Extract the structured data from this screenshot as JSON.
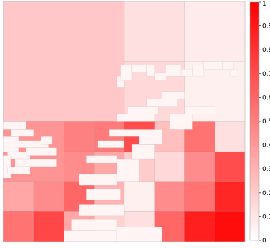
{
  "chart_data": {
    "type": "heatmap",
    "title": "",
    "xlabel": "",
    "ylabel": "",
    "description_note": "",
    "colormap": {
      "low": "#ffffff",
      "high": "#ff0000"
    },
    "colorbar": {
      "min": 0,
      "max": 1,
      "ticks": [
        0,
        0.1,
        0.2,
        0.3,
        0.4,
        0.5,
        0.6,
        0.7,
        0.8,
        0.9,
        1
      ],
      "tick_labels": [
        "0",
        "0.1",
        "0.2",
        "0.3",
        "0.4",
        "0.5",
        "0.6",
        "0.7",
        "0.8",
        "0.9",
        "1"
      ]
    },
    "grid_size": 64,
    "cells": [
      [
        0,
        0,
        32,
        32,
        0.22
      ],
      [
        32,
        0,
        16,
        16,
        0.12
      ],
      [
        48,
        0,
        16,
        16,
        0.08
      ],
      [
        32,
        16,
        16,
        16,
        0.15
      ],
      [
        48,
        16,
        16,
        16,
        0.06
      ],
      [
        0,
        32,
        16,
        16,
        0.42
      ],
      [
        16,
        32,
        8,
        8,
        0.5
      ],
      [
        24,
        32,
        8,
        8,
        0.52
      ],
      [
        0,
        48,
        8,
        8,
        0.35
      ],
      [
        8,
        48,
        8,
        8,
        0.45
      ],
      [
        0,
        56,
        8,
        8,
        0.55
      ],
      [
        8,
        56,
        8,
        8,
        0.72
      ],
      [
        16,
        40,
        8,
        8,
        0.45
      ],
      [
        24,
        40,
        8,
        8,
        0.35
      ],
      [
        16,
        48,
        8,
        8,
        0.6
      ],
      [
        24,
        48,
        8,
        8,
        0.3
      ],
      [
        16,
        56,
        8,
        8,
        0.35
      ],
      [
        24,
        56,
        8,
        8,
        0.18
      ],
      [
        32,
        32,
        8,
        8,
        0.7
      ],
      [
        40,
        32,
        8,
        8,
        0.25
      ],
      [
        48,
        32,
        8,
        8,
        0.55
      ],
      [
        56,
        32,
        8,
        8,
        0.12
      ],
      [
        32,
        40,
        8,
        8,
        0.2
      ],
      [
        40,
        40,
        8,
        8,
        0.15
      ],
      [
        48,
        40,
        8,
        8,
        0.45
      ],
      [
        56,
        40,
        8,
        8,
        0.7
      ],
      [
        32,
        48,
        8,
        8,
        0.06
      ],
      [
        40,
        48,
        8,
        8,
        0.45
      ],
      [
        48,
        48,
        8,
        8,
        0.55
      ],
      [
        56,
        48,
        8,
        8,
        0.85
      ],
      [
        32,
        56,
        8,
        8,
        0.12
      ],
      [
        40,
        56,
        8,
        8,
        0.6
      ],
      [
        48,
        56,
        8,
        8,
        0.88
      ],
      [
        56,
        56,
        8,
        8,
        0.95
      ]
    ],
    "white_regions": [
      [
        0,
        32,
        6,
        2
      ],
      [
        2,
        34,
        6,
        2
      ],
      [
        0,
        36,
        4,
        4
      ],
      [
        3,
        37,
        9,
        2
      ],
      [
        10,
        36,
        3,
        2
      ],
      [
        1,
        40,
        6,
        2
      ],
      [
        6,
        39,
        8,
        2
      ],
      [
        0,
        41,
        2,
        6
      ],
      [
        3,
        42,
        11,
        2
      ],
      [
        1,
        44,
        6,
        2
      ],
      [
        30,
        20,
        2,
        3
      ],
      [
        31,
        17,
        3,
        4
      ],
      [
        34,
        17,
        4,
        2
      ],
      [
        38,
        17,
        2,
        3
      ],
      [
        40,
        19,
        3,
        2
      ],
      [
        43,
        17,
        4,
        3
      ],
      [
        47,
        18,
        3,
        2
      ],
      [
        50,
        17,
        3,
        3
      ],
      [
        53,
        16,
        5,
        2
      ],
      [
        58,
        16,
        3,
        2
      ],
      [
        60,
        18,
        2,
        2
      ],
      [
        30,
        30,
        10,
        2
      ],
      [
        33,
        28,
        8,
        2
      ],
      [
        38,
        26,
        8,
        2
      ],
      [
        42,
        24,
        6,
        2
      ],
      [
        28,
        34,
        8,
        2
      ],
      [
        25,
        37,
        7,
        2
      ],
      [
        22,
        41,
        8,
        2
      ],
      [
        20,
        46,
        10,
        3
      ],
      [
        22,
        50,
        9,
        3
      ],
      [
        20,
        54,
        12,
        3
      ],
      [
        18,
        58,
        12,
        3
      ],
      [
        16,
        61,
        14,
        3
      ],
      [
        30,
        60,
        12,
        4
      ],
      [
        30,
        42,
        6,
        6
      ],
      [
        34,
        38,
        6,
        4
      ],
      [
        36,
        34,
        6,
        4
      ],
      [
        44,
        30,
        6,
        4
      ],
      [
        48,
        28,
        8,
        2
      ]
    ]
  }
}
